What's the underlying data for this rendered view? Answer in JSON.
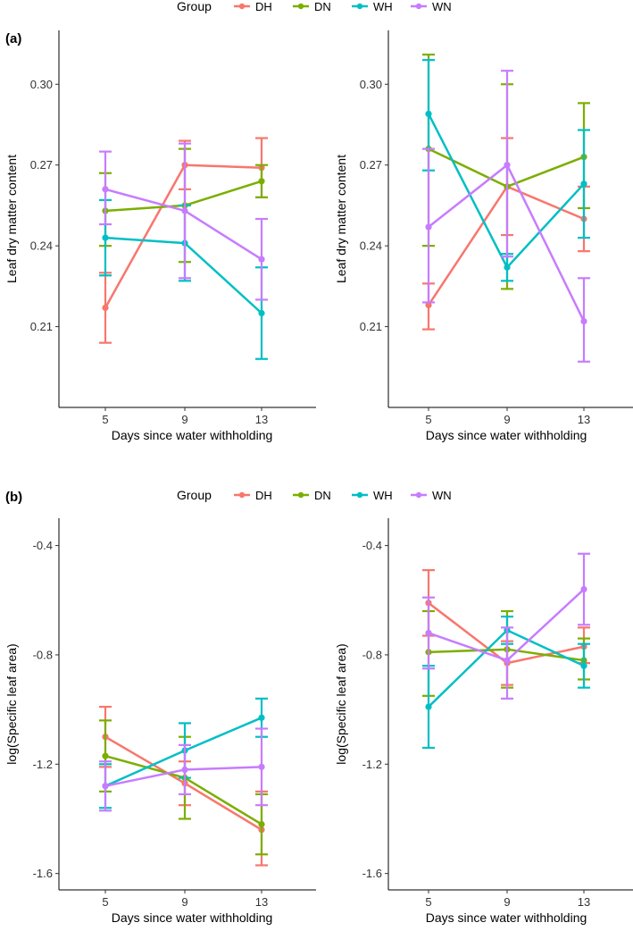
{
  "legend": {
    "title": "Group",
    "groups": [
      {
        "key": "DH",
        "label": "DH",
        "color": "#F8766D"
      },
      {
        "key": "DN",
        "label": "DN",
        "color": "#7CAE00"
      },
      {
        "key": "WH",
        "label": "WH",
        "color": "#00BFC4"
      },
      {
        "key": "WN",
        "label": "WN",
        "color": "#C77CFF"
      }
    ]
  },
  "panels": [
    {
      "label": "(a)"
    },
    {
      "label": "(b)"
    }
  ],
  "chart_data": [
    {
      "type": "line",
      "panel": "(a)",
      "position": "top-left",
      "xlabel": "Days since water withholding",
      "ylabel": "Leaf dry matter content",
      "x": [
        5,
        9,
        13
      ],
      "xticks": [
        "5",
        "9",
        "13"
      ],
      "ylim": [
        0.18,
        0.32
      ],
      "yticks": [
        0.21,
        0.24,
        0.27,
        0.3
      ],
      "ytick_labels": [
        "0.21",
        "0.24",
        "0.27",
        "0.30"
      ],
      "series": [
        {
          "name": "DH",
          "values": [
            0.217,
            0.27,
            0.269
          ],
          "lower": [
            0.204,
            0.261,
            0.258
          ],
          "upper": [
            0.23,
            0.279,
            0.28
          ]
        },
        {
          "name": "DN",
          "values": [
            0.253,
            0.255,
            0.264
          ],
          "lower": [
            0.24,
            0.234,
            0.258
          ],
          "upper": [
            0.267,
            0.276,
            0.27
          ]
        },
        {
          "name": "WH",
          "values": [
            0.243,
            0.241,
            0.215
          ],
          "lower": [
            0.229,
            0.227,
            0.198
          ],
          "upper": [
            0.257,
            0.255,
            0.232
          ]
        },
        {
          "name": "WN",
          "values": [
            0.261,
            0.253,
            0.235
          ],
          "lower": [
            0.248,
            0.228,
            0.22
          ],
          "upper": [
            0.275,
            0.278,
            0.25
          ]
        }
      ]
    },
    {
      "type": "line",
      "panel": "(a)",
      "position": "top-right",
      "xlabel": "Days since water withholding",
      "ylabel": "Leaf dry matter content",
      "x": [
        5,
        9,
        13
      ],
      "xticks": [
        "5",
        "9",
        "13"
      ],
      "ylim": [
        0.18,
        0.32
      ],
      "yticks": [
        0.21,
        0.24,
        0.27,
        0.3
      ],
      "ytick_labels": [
        "0.21",
        "0.24",
        "0.27",
        "0.30"
      ],
      "series": [
        {
          "name": "DH",
          "values": [
            0.218,
            0.262,
            0.25
          ],
          "lower": [
            0.209,
            0.244,
            0.238
          ],
          "upper": [
            0.226,
            0.28,
            0.262
          ]
        },
        {
          "name": "DN",
          "values": [
            0.276,
            0.262,
            0.273
          ],
          "lower": [
            0.24,
            0.224,
            0.254
          ],
          "upper": [
            0.311,
            0.3,
            0.293
          ]
        },
        {
          "name": "WH",
          "values": [
            0.289,
            0.232,
            0.263
          ],
          "lower": [
            0.268,
            0.227,
            0.243
          ],
          "upper": [
            0.309,
            0.237,
            0.283
          ]
        },
        {
          "name": "WN",
          "values": [
            0.247,
            0.27,
            0.212
          ],
          "lower": [
            0.219,
            0.236,
            0.197
          ],
          "upper": [
            0.276,
            0.305,
            0.228
          ]
        }
      ]
    },
    {
      "type": "line",
      "panel": "(b)",
      "position": "bottom-left",
      "xlabel": "Days since water withholding",
      "ylabel": "log(Specific leaf area)",
      "x": [
        5,
        9,
        13
      ],
      "xticks": [
        "5",
        "9",
        "13"
      ],
      "ylim": [
        -1.66,
        -0.3
      ],
      "yticks": [
        -1.6,
        -1.2,
        -0.8,
        -0.4
      ],
      "ytick_labels": [
        "-1.6",
        "-1.2",
        "-0.8",
        "-0.4"
      ],
      "series": [
        {
          "name": "DH",
          "values": [
            -1.1,
            -1.27,
            -1.44
          ],
          "lower": [
            -1.21,
            -1.35,
            -1.57
          ],
          "upper": [
            -0.99,
            -1.19,
            -1.3
          ]
        },
        {
          "name": "DN",
          "values": [
            -1.17,
            -1.25,
            -1.42
          ],
          "lower": [
            -1.3,
            -1.4,
            -1.53
          ],
          "upper": [
            -1.04,
            -1.1,
            -1.31
          ]
        },
        {
          "name": "WH",
          "values": [
            -1.28,
            -1.15,
            -1.03
          ],
          "lower": [
            -1.36,
            -1.25,
            -1.1
          ],
          "upper": [
            -1.2,
            -1.05,
            -0.96
          ]
        },
        {
          "name": "WN",
          "values": [
            -1.28,
            -1.22,
            -1.21
          ],
          "lower": [
            -1.37,
            -1.31,
            -1.35
          ],
          "upper": [
            -1.19,
            -1.13,
            -1.07
          ]
        }
      ]
    },
    {
      "type": "line",
      "panel": "(b)",
      "position": "bottom-right",
      "xlabel": "Days since water withholding",
      "ylabel": "log(Specific leaf area)",
      "x": [
        5,
        9,
        13
      ],
      "xticks": [
        "5",
        "9",
        "13"
      ],
      "ylim": [
        -1.66,
        -0.3
      ],
      "yticks": [
        -1.6,
        -1.2,
        -0.8,
        -0.4
      ],
      "ytick_labels": [
        "-1.6",
        "-1.2",
        "-0.8",
        "-0.4"
      ],
      "series": [
        {
          "name": "DH",
          "values": [
            -0.61,
            -0.83,
            -0.77
          ],
          "lower": [
            -0.73,
            -0.91,
            -0.83
          ],
          "upper": [
            -0.49,
            -0.75,
            -0.7
          ]
        },
        {
          "name": "DN",
          "values": [
            -0.79,
            -0.78,
            -0.82
          ],
          "lower": [
            -0.95,
            -0.92,
            -0.89
          ],
          "upper": [
            -0.64,
            -0.64,
            -0.74
          ]
        },
        {
          "name": "WH",
          "values": [
            -0.99,
            -0.71,
            -0.84
          ],
          "lower": [
            -1.14,
            -0.76,
            -0.92
          ],
          "upper": [
            -0.84,
            -0.66,
            -0.76
          ]
        },
        {
          "name": "WN",
          "values": [
            -0.72,
            -0.82,
            -0.56
          ],
          "lower": [
            -0.85,
            -0.96,
            -0.69
          ],
          "upper": [
            -0.59,
            -0.7,
            -0.43
          ]
        }
      ]
    }
  ]
}
